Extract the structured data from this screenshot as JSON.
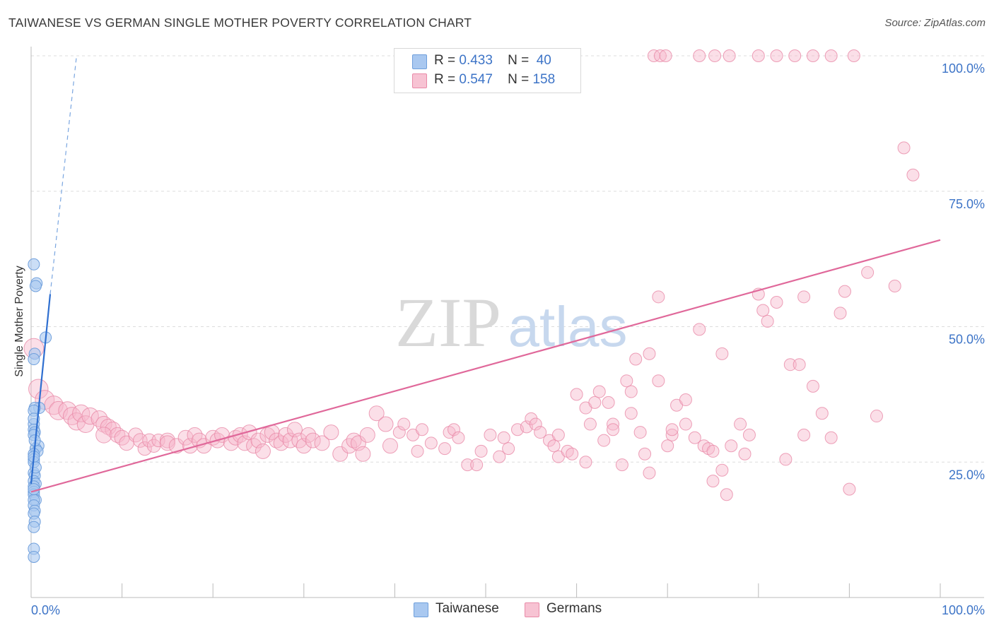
{
  "title": "TAIWANESE VS GERMAN SINGLE MOTHER POVERTY CORRELATION CHART",
  "source": "Source: ZipAtlas.com",
  "watermark": {
    "zip": "ZIP",
    "atlas": "atlas"
  },
  "legend": {
    "rows": [
      {
        "r_label": "R =",
        "r_value": "0.433",
        "n_label": "N =",
        "n_value": "40"
      },
      {
        "r_label": "R =",
        "r_value": "0.547",
        "n_label": "N =",
        "n_value": "158"
      }
    ]
  },
  "bottom_legend": {
    "taiwanese": "Taiwanese",
    "germans": "Germans"
  },
  "colors": {
    "taiwanese_fill": "#a9c8f0",
    "taiwanese_stroke": "#6f9fdc",
    "taiwanese_line": "#2f6fd0",
    "germans_fill": "#f7b8cc",
    "germans_stroke": "#e98aa8",
    "germans_line": "#e0689a",
    "axis_text": "#3d74c7",
    "grid": "#dddddd"
  },
  "chart_data": {
    "type": "scatter",
    "title": "TAIWANESE VS GERMAN SINGLE MOTHER POVERTY CORRELATION CHART",
    "xlabel": "",
    "ylabel": "Single Mother Poverty",
    "xlim": [
      0,
      100
    ],
    "ylim": [
      0,
      100
    ],
    "x_tick_labels": [
      "0.0%",
      "100.0%"
    ],
    "y_tick_labels": [
      "25.0%",
      "50.0%",
      "75.0%",
      "100.0%"
    ],
    "y_ticks": [
      25,
      50,
      75,
      100
    ],
    "grid": true,
    "legend_position": "top-center",
    "series": [
      {
        "name": "Taiwanese",
        "r": 0.433,
        "n": 40,
        "trend": {
          "x1": 0,
          "y1": 21,
          "x2": 2.1,
          "y2": 56,
          "dash_to_x": 5,
          "dash_to_y": 100
        },
        "points": [
          [
            0.3,
            61.5
          ],
          [
            0.6,
            58
          ],
          [
            0.5,
            57.5
          ],
          [
            1.6,
            48
          ],
          [
            0.4,
            45
          ],
          [
            0.3,
            44
          ],
          [
            0.9,
            35
          ],
          [
            0.4,
            35
          ],
          [
            0.3,
            34.5
          ],
          [
            0.3,
            32
          ],
          [
            0.3,
            31
          ],
          [
            0.4,
            30.5
          ],
          [
            0.3,
            30
          ],
          [
            0.8,
            28
          ],
          [
            0.5,
            27.5
          ],
          [
            0.7,
            27
          ],
          [
            0.3,
            26.5
          ],
          [
            0.3,
            25.5
          ],
          [
            0.3,
            25
          ],
          [
            0.3,
            23
          ],
          [
            0.4,
            22.5
          ],
          [
            0.3,
            21.5
          ],
          [
            0.5,
            21
          ],
          [
            0.3,
            20.5
          ],
          [
            0.3,
            19.5
          ],
          [
            0.3,
            19
          ],
          [
            0.5,
            18
          ],
          [
            0.3,
            18
          ],
          [
            0.3,
            17
          ],
          [
            0.4,
            16
          ],
          [
            0.3,
            15.5
          ],
          [
            0.4,
            14
          ],
          [
            0.3,
            13
          ],
          [
            0.3,
            9
          ],
          [
            0.3,
            7.5
          ],
          [
            0.3,
            20
          ],
          [
            0.4,
            29
          ],
          [
            0.3,
            26
          ],
          [
            0.5,
            24
          ],
          [
            0.3,
            33
          ]
        ]
      },
      {
        "name": "Germans",
        "r": 0.547,
        "n": 158,
        "trend": {
          "x1": 0,
          "y1": 19.5,
          "x2": 100,
          "y2": 66
        },
        "points": [
          [
            0.3,
            46
          ],
          [
            0.8,
            38.5
          ],
          [
            1.5,
            36.5
          ],
          [
            2.5,
            35.5
          ],
          [
            3,
            34.5
          ],
          [
            4,
            34.5
          ],
          [
            4.5,
            33.5
          ],
          [
            5,
            32.5
          ],
          [
            5.5,
            34
          ],
          [
            6,
            32
          ],
          [
            6.5,
            33.5
          ],
          [
            7.5,
            33
          ],
          [
            8,
            32
          ],
          [
            8.5,
            31.5
          ],
          [
            9,
            31
          ],
          [
            8,
            30
          ],
          [
            9.5,
            30
          ],
          [
            10,
            29.5
          ],
          [
            10.5,
            28.5
          ],
          [
            11.5,
            30
          ],
          [
            12,
            29
          ],
          [
            12.5,
            27.5
          ],
          [
            13,
            29
          ],
          [
            13.5,
            28
          ],
          [
            14,
            29
          ],
          [
            15,
            29
          ],
          [
            15,
            28.5
          ],
          [
            16,
            28
          ],
          [
            17,
            29.5
          ],
          [
            17.5,
            28
          ],
          [
            18,
            30
          ],
          [
            18.5,
            29
          ],
          [
            19,
            28
          ],
          [
            20,
            29.5
          ],
          [
            20.5,
            29
          ],
          [
            21,
            30
          ],
          [
            22,
            28.5
          ],
          [
            22.5,
            29.5
          ],
          [
            23,
            30
          ],
          [
            23.5,
            28.5
          ],
          [
            24,
            30.5
          ],
          [
            24.5,
            28
          ],
          [
            25,
            29
          ],
          [
            25.5,
            27
          ],
          [
            26,
            30
          ],
          [
            26.5,
            30.5
          ],
          [
            27,
            29
          ],
          [
            27.5,
            28.5
          ],
          [
            28,
            30
          ],
          [
            28.5,
            29
          ],
          [
            29,
            31
          ],
          [
            29.5,
            29
          ],
          [
            30,
            28
          ],
          [
            30.5,
            30
          ],
          [
            31,
            29
          ],
          [
            32,
            28.5
          ],
          [
            33,
            30.5
          ],
          [
            34,
            26.5
          ],
          [
            35,
            28
          ],
          [
            35.5,
            29
          ],
          [
            36,
            28.5
          ],
          [
            36.5,
            26.5
          ],
          [
            37,
            30
          ],
          [
            38,
            34
          ],
          [
            39,
            32
          ],
          [
            39.5,
            28
          ],
          [
            40.5,
            30.5
          ],
          [
            41,
            32
          ],
          [
            42,
            30
          ],
          [
            42.5,
            27
          ],
          [
            43,
            31
          ],
          [
            44,
            28.5
          ],
          [
            45.5,
            27.5
          ],
          [
            46,
            30.5
          ],
          [
            46.5,
            31
          ],
          [
            47,
            29.5
          ],
          [
            48,
            24.5
          ],
          [
            49,
            24.5
          ],
          [
            49.5,
            27
          ],
          [
            50.5,
            30
          ],
          [
            51.5,
            26
          ],
          [
            52,
            29.5
          ],
          [
            52.5,
            27.5
          ],
          [
            53.5,
            31
          ],
          [
            54.5,
            31.5
          ],
          [
            55,
            33
          ],
          [
            55.5,
            32
          ],
          [
            56,
            30.5
          ],
          [
            57,
            29
          ],
          [
            57.5,
            28
          ],
          [
            58,
            26
          ],
          [
            59,
            27
          ],
          [
            59.5,
            26.5
          ],
          [
            60,
            37.5
          ],
          [
            61,
            35
          ],
          [
            61.5,
            32
          ],
          [
            62,
            36
          ],
          [
            62.5,
            38
          ],
          [
            63,
            29
          ],
          [
            63.5,
            36
          ],
          [
            64,
            32
          ],
          [
            65,
            24.5
          ],
          [
            65.5,
            40
          ],
          [
            66,
            38
          ],
          [
            66.5,
            44
          ],
          [
            67.5,
            26.5
          ],
          [
            68,
            23
          ],
          [
            68,
            45
          ],
          [
            69,
            40
          ],
          [
            70.5,
            30
          ],
          [
            70.5,
            31
          ],
          [
            71,
            35.5
          ],
          [
            72,
            36.5
          ],
          [
            73,
            29.5
          ],
          [
            73.5,
            49.5
          ],
          [
            74,
            28
          ],
          [
            74.5,
            27.5
          ],
          [
            75,
            27
          ],
          [
            75,
            21.5
          ],
          [
            76,
            23.5
          ],
          [
            76.5,
            19
          ],
          [
            77,
            28
          ],
          [
            78,
            32
          ],
          [
            78.5,
            26.5
          ],
          [
            79,
            30
          ],
          [
            80,
            56
          ],
          [
            80.5,
            53
          ],
          [
            81,
            51
          ],
          [
            82,
            54.5
          ],
          [
            83,
            25.5
          ],
          [
            83.5,
            43
          ],
          [
            84.5,
            43
          ],
          [
            85,
            30
          ],
          [
            86,
            39
          ],
          [
            87,
            34
          ],
          [
            88,
            29.5
          ],
          [
            89,
            52.5
          ],
          [
            89.5,
            56.5
          ],
          [
            90,
            20
          ],
          [
            92,
            60
          ],
          [
            93,
            33.5
          ],
          [
            95,
            57.5
          ],
          [
            69,
            55.5
          ],
          [
            72,
            32
          ],
          [
            76,
            45
          ],
          [
            85,
            55.5
          ],
          [
            58,
            30
          ],
          [
            61,
            25
          ],
          [
            64,
            31
          ],
          [
            66,
            34
          ],
          [
            68.5,
            100
          ],
          [
            69.2,
            100
          ],
          [
            69.8,
            100
          ],
          [
            73.5,
            100
          ],
          [
            75.2,
            100
          ],
          [
            76.8,
            100
          ],
          [
            80,
            100
          ],
          [
            82,
            100
          ],
          [
            84,
            100
          ],
          [
            86,
            100
          ],
          [
            88,
            100
          ],
          [
            90.5,
            100
          ],
          [
            96,
            83
          ],
          [
            97,
            78
          ],
          [
            67,
            30.5
          ],
          [
            70,
            28
          ]
        ]
      }
    ]
  }
}
